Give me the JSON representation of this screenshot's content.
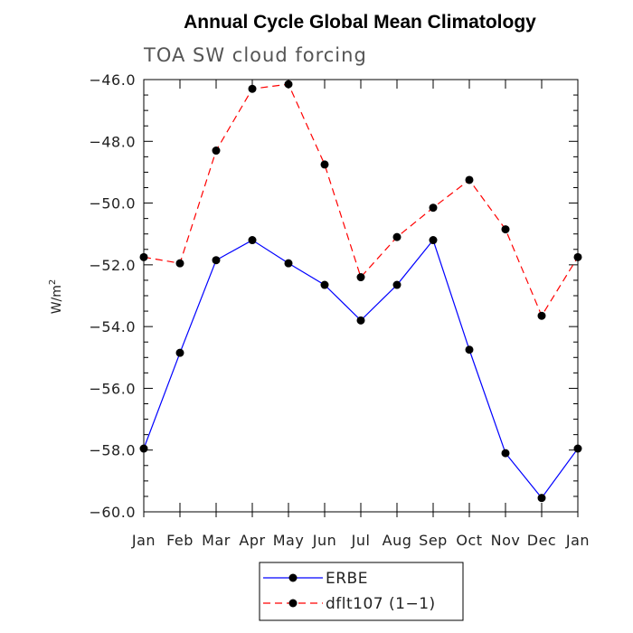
{
  "chart_data": {
    "type": "line",
    "title": "Annual Cycle Global Mean Climatology",
    "subtitle": "TOA SW cloud forcing",
    "xlabel": "",
    "ylabel": "W/m",
    "ylabel_superscript": "2",
    "categories": [
      "Jan",
      "Feb",
      "Mar",
      "Apr",
      "May",
      "Jun",
      "Jul",
      "Aug",
      "Sep",
      "Oct",
      "Nov",
      "Dec",
      "Jan"
    ],
    "ylim": [
      -60.0,
      -46.0
    ],
    "yticks": [
      -60.0,
      -58.0,
      -56.0,
      -54.0,
      -52.0,
      -50.0,
      -48.0,
      -46.0
    ],
    "ytick_labels": [
      "−60.0",
      "−58.0",
      "−56.0",
      "−54.0",
      "−52.0",
      "−50.0",
      "−48.0",
      "−46.0"
    ],
    "series": [
      {
        "name": "ERBE",
        "color": "#0000ff",
        "line_style": "solid",
        "values": [
          -57.95,
          -54.85,
          -51.85,
          -51.2,
          -51.95,
          -52.65,
          -53.8,
          -52.65,
          -51.2,
          -54.75,
          -58.1,
          -59.55,
          -57.95
        ]
      },
      {
        "name": "dflt107 (1−1)",
        "color": "#ff0000",
        "line_style": "dashed",
        "values": [
          -51.75,
          -51.95,
          -48.3,
          -46.3,
          -46.15,
          -48.75,
          -52.4,
          -51.1,
          -50.15,
          -49.25,
          -50.85,
          -53.65,
          -51.75
        ]
      }
    ],
    "marker_color": "#000000",
    "legend_position": "bottom-center"
  }
}
